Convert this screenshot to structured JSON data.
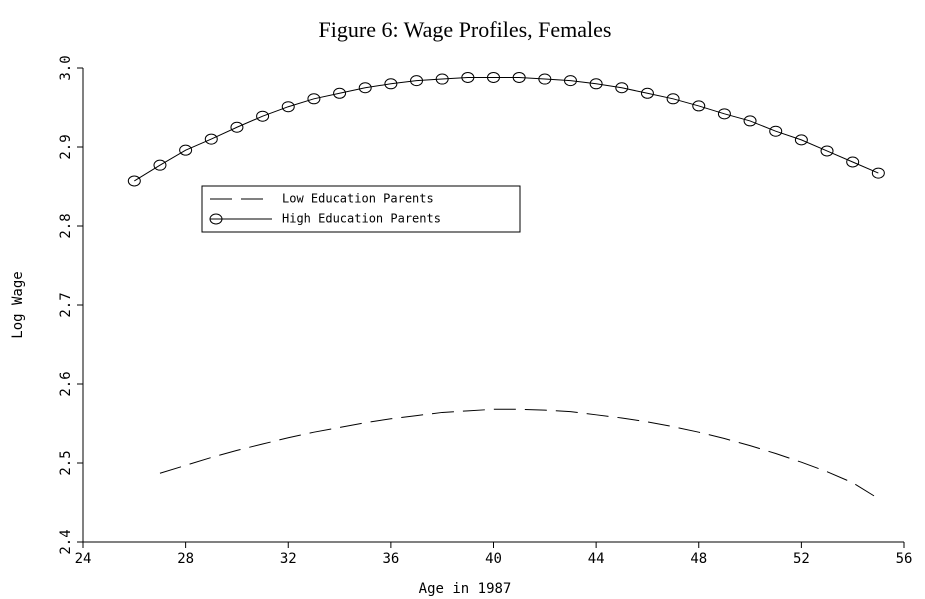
{
  "chart_data": {
    "type": "line",
    "title": "Figure 6: Wage Profiles, Females",
    "x_label": "Age in 1987",
    "y_label": "Log Wage",
    "xlim": [
      24,
      56
    ],
    "xticks": [
      24,
      28,
      32,
      36,
      40,
      44,
      48,
      52,
      56
    ],
    "ylim": [
      2.4,
      3.0
    ],
    "yticks": [
      {
        "value": 2.4,
        "label": "2.4"
      },
      2.5,
      2.6,
      2.7,
      2.8,
      2.9,
      {
        "value": 3.0,
        "label": "3.0"
      }
    ],
    "legend": "upper left",
    "series": [
      {
        "name": "Low Education Parents",
        "color": "#000000",
        "line_style": "dashed",
        "marker": "none",
        "x": [
          27,
          28,
          29,
          30,
          31,
          32,
          33,
          34,
          35,
          36,
          37,
          38,
          39,
          40,
          41,
          42,
          43,
          44,
          45,
          46,
          47,
          48,
          49,
          50,
          51,
          52,
          53,
          54,
          55
        ],
        "values": [
          2.487,
          2.497,
          2.507,
          2.516,
          2.524,
          2.532,
          2.539,
          2.545,
          2.551,
          2.556,
          2.56,
          2.564,
          2.566,
          2.568,
          2.568,
          2.567,
          2.565,
          2.561,
          2.557,
          2.552,
          2.546,
          2.539,
          2.531,
          2.522,
          2.512,
          2.501,
          2.489,
          2.475,
          2.455
        ]
      },
      {
        "name": "High Education Parents",
        "color": "#000000",
        "line_style": "solid",
        "marker": "circle",
        "x": [
          26,
          27,
          28,
          29,
          30,
          31,
          32,
          33,
          34,
          35,
          36,
          37,
          38,
          39,
          40,
          41,
          42,
          43,
          44,
          45,
          46,
          47,
          48,
          49,
          50,
          51,
          52,
          53,
          54,
          55
        ],
        "values": [
          2.857,
          2.877,
          2.896,
          2.91,
          2.925,
          2.939,
          2.951,
          2.961,
          2.968,
          2.975,
          2.98,
          2.984,
          2.986,
          2.988,
          2.988,
          2.988,
          2.986,
          2.984,
          2.98,
          2.975,
          2.968,
          2.961,
          2.952,
          2.942,
          2.933,
          2.92,
          2.909,
          2.895,
          2.881,
          2.867
        ]
      }
    ]
  }
}
